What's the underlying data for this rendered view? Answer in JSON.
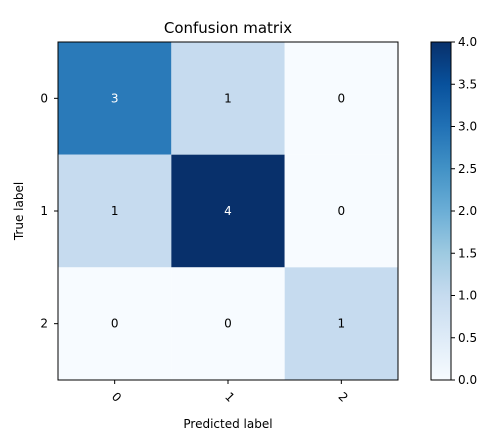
{
  "chart_data": {
    "type": "heatmap",
    "title": "Confusion matrix",
    "xlabel": "Predicted label",
    "ylabel": "True label",
    "x_categories": [
      "0",
      "1",
      "2"
    ],
    "y_categories": [
      "0",
      "1",
      "2"
    ],
    "values": [
      [
        3,
        1,
        0
      ],
      [
        1,
        4,
        0
      ],
      [
        0,
        0,
        1
      ]
    ],
    "colormap": "Blues",
    "colorbar": {
      "min": 0.0,
      "max": 4.0,
      "ticks": [
        "0.0",
        "0.5",
        "1.0",
        "1.5",
        "2.0",
        "2.5",
        "3.0",
        "3.5",
        "4.0"
      ]
    },
    "colors": {
      "3": "#2a7ab9",
      "1": "#c6dbef",
      "0": "#f7fbff",
      "4": "#08306b"
    }
  }
}
